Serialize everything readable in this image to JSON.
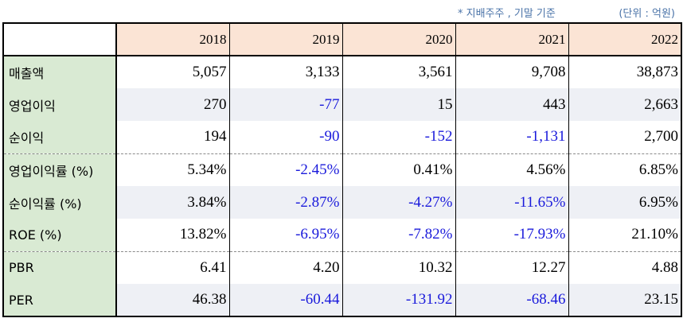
{
  "notes": {
    "shareholder_note": "* 지배주주 , 기말 기준",
    "unit": "(단위 : 억원)"
  },
  "table": {
    "corner": "",
    "years": [
      "2018",
      "2019",
      "2020",
      "2021",
      "2022"
    ],
    "rows": [
      {
        "label": "매출액",
        "values": [
          "5,057",
          "3,133",
          "3,561",
          "9,708",
          "38,873"
        ]
      },
      {
        "label": "영업이익",
        "values": [
          "270",
          "-77",
          "15",
          "443",
          "2,663"
        ]
      },
      {
        "label": "순이익",
        "values": [
          "194",
          "-90",
          "-152",
          "-1,131",
          "2,700"
        ]
      },
      {
        "label": "영업이익률 (%)",
        "values": [
          "5.34%",
          "-2.45%",
          "0.41%",
          "4.56%",
          "6.85%"
        ]
      },
      {
        "label": "순이익률 (%)",
        "values": [
          "3.84%",
          "-2.87%",
          "-4.27%",
          "-11.65%",
          "6.95%"
        ]
      },
      {
        "label": "ROE (%)",
        "values": [
          "13.82%",
          "-6.95%",
          "-7.82%",
          "-17.93%",
          "21.10%"
        ]
      },
      {
        "label": "PBR",
        "values": [
          "6.41",
          "4.20",
          "10.32",
          "12.27",
          "4.88"
        ]
      },
      {
        "label": "PER",
        "values": [
          "46.38",
          "-60.44",
          "-131.92",
          "-68.46",
          "23.15"
        ]
      }
    ]
  },
  "colors": {
    "header_bg": "#fbe4d5",
    "label_bg": "#d9ead3",
    "shaded_row_bg": "#eef0f5",
    "negative_text": "#1a1adb",
    "note_text": "#4a73a8"
  }
}
